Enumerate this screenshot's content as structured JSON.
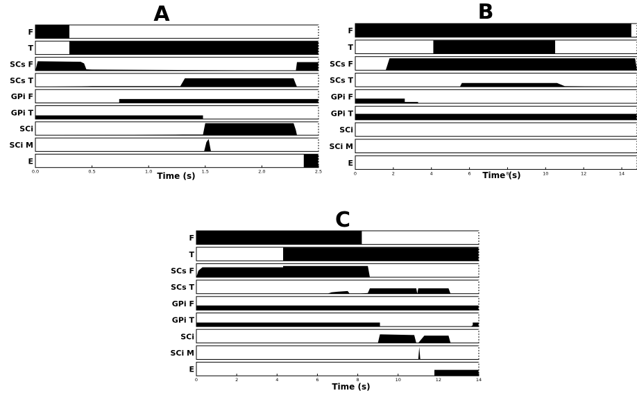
{
  "chart_data": [
    {
      "type": "area",
      "title": "A",
      "xlabel": "Time (s)",
      "xlim": [
        0,
        2.5
      ],
      "xticks": [
        "0.0",
        "0.5",
        "1.0",
        "1.5",
        "2.0",
        "2.5"
      ],
      "ylim": [
        0,
        1
      ],
      "grid": false,
      "series": [
        {
          "name": "F",
          "x": [
            0,
            0.3,
            0.3,
            2.5
          ],
          "values": [
            1,
            1,
            0,
            0
          ]
        },
        {
          "name": "T",
          "x": [
            0,
            0.3,
            0.3,
            2.5
          ],
          "values": [
            0,
            0,
            1,
            1
          ]
        },
        {
          "name": "SCs F",
          "x": [
            0,
            0.02,
            0.4,
            0.43,
            0.45,
            0.5,
            2.3,
            2.31,
            2.5
          ],
          "values": [
            0,
            0.72,
            0.68,
            0.55,
            0.1,
            0.08,
            0,
            0.65,
            0.65
          ]
        },
        {
          "name": "SCs T",
          "x": [
            0,
            0.5,
            1.28,
            1.32,
            2.28,
            2.3,
            2.31,
            2.5
          ],
          "values": [
            0,
            0.05,
            0.05,
            0.65,
            0.65,
            0.2,
            0,
            0
          ]
        },
        {
          "name": "GPi F",
          "x": [
            0,
            0.74,
            0.74,
            2.5
          ],
          "values": [
            0,
            0,
            0.3,
            0.3
          ]
        },
        {
          "name": "GPi T",
          "x": [
            0,
            1.48,
            1.48,
            2.5
          ],
          "values": [
            0.28,
            0.28,
            0,
            0
          ]
        },
        {
          "name": "SCi",
          "x": [
            0,
            1.3,
            1.48,
            1.5,
            2.28,
            2.3,
            2.31,
            2.5
          ],
          "values": [
            0,
            0.05,
            0.05,
            0.92,
            0.92,
            0.4,
            0,
            0
          ]
        },
        {
          "name": "SCi M",
          "x": [
            0,
            1.49,
            1.51,
            1.53,
            1.55,
            2.5
          ],
          "values": [
            0,
            0,
            0.7,
            0.95,
            0,
            0
          ]
        },
        {
          "name": "E",
          "x": [
            0,
            2.37,
            2.37,
            2.5
          ],
          "values": [
            0,
            0,
            1,
            1
          ]
        }
      ]
    },
    {
      "type": "area",
      "title": "B",
      "xlabel": "Time (s)",
      "xlim": [
        0,
        14.8
      ],
      "xticks": [
        "0",
        "2",
        "4",
        "6",
        "8",
        "10",
        "12",
        "14"
      ],
      "ylim": [
        0,
        1
      ],
      "grid": false,
      "series": [
        {
          "name": "F",
          "x": [
            0,
            14.5,
            14.5,
            14.8
          ],
          "values": [
            1,
            1,
            0,
            0
          ]
        },
        {
          "name": "T",
          "x": [
            0,
            4.1,
            4.1,
            10.5,
            10.5,
            14.8
          ],
          "values": [
            0,
            0,
            1,
            1,
            0,
            0
          ]
        },
        {
          "name": "SCs F",
          "x": [
            0,
            1.6,
            1.8,
            14.7,
            14.8
          ],
          "values": [
            0,
            0,
            0.9,
            0.9,
            0
          ]
        },
        {
          "name": "SCs T",
          "x": [
            0,
            5.5,
            5.6,
            10.6,
            11.0,
            14.8
          ],
          "values": [
            0,
            0,
            0.28,
            0.28,
            0.05,
            0
          ]
        },
        {
          "name": "GPi F",
          "x": [
            0,
            2.6,
            2.6,
            3.3,
            3.3,
            14.8
          ],
          "values": [
            0.35,
            0.35,
            0.1,
            0.1,
            0,
            0
          ]
        },
        {
          "name": "GPi T",
          "x": [
            0,
            14.8
          ],
          "values": [
            0.45,
            0.45
          ]
        },
        {
          "name": "SCi",
          "x": [
            0,
            14.8
          ],
          "values": [
            0,
            0
          ]
        },
        {
          "name": "SCi M",
          "x": [
            0,
            14.8
          ],
          "values": [
            0,
            0
          ]
        },
        {
          "name": "E",
          "x": [
            0,
            14.8
          ],
          "values": [
            0,
            0
          ]
        }
      ]
    },
    {
      "type": "area",
      "title": "C",
      "xlabel": "Time (s)",
      "xlim": [
        0,
        14
      ],
      "xticks": [
        "0",
        "2",
        "4",
        "6",
        "8",
        "10",
        "12",
        "14"
      ],
      "ylim": [
        0,
        1
      ],
      "grid": false,
      "series": [
        {
          "name": "F",
          "x": [
            0,
            8.2,
            8.2,
            14
          ],
          "values": [
            1,
            1,
            0,
            0
          ]
        },
        {
          "name": "T",
          "x": [
            0,
            4.3,
            4.3,
            14
          ],
          "values": [
            0,
            0,
            1,
            1
          ]
        },
        {
          "name": "SCs F",
          "x": [
            0,
            0.1,
            0.3,
            4.3,
            4.3,
            8.5,
            8.6,
            14
          ],
          "values": [
            0,
            0.5,
            0.75,
            0.75,
            0.85,
            0.85,
            0,
            0
          ]
        },
        {
          "name": "SCs T",
          "x": [
            0,
            6.5,
            6.7,
            7.0,
            7.5,
            7.6,
            8.0,
            8.5,
            8.6,
            9.0,
            10.9,
            10.95,
            11.0,
            12.5,
            12.6,
            14
          ],
          "values": [
            0,
            0,
            0.1,
            0.15,
            0.2,
            0,
            0,
            0.05,
            0.4,
            0.4,
            0.4,
            0,
            0.4,
            0.4,
            0,
            0
          ]
        },
        {
          "name": "GPi F",
          "x": [
            0,
            14
          ],
          "values": [
            0.35,
            0.35
          ]
        },
        {
          "name": "GPi T",
          "x": [
            0,
            9.1,
            9.1,
            13.6,
            13.7,
            13.7,
            14
          ],
          "values": [
            0.3,
            0.3,
            0,
            0,
            0.1,
            0.3,
            0.3
          ]
        },
        {
          "name": "SCi",
          "x": [
            0,
            9.0,
            9.1,
            10.8,
            10.9,
            11.0,
            11.3,
            12.5,
            12.6,
            14
          ],
          "values": [
            0,
            0,
            0.65,
            0.6,
            0,
            0,
            0.55,
            0.55,
            0,
            0
          ]
        },
        {
          "name": "SCi M",
          "x": [
            0,
            11.0,
            11.05,
            11.1,
            14
          ],
          "values": [
            0,
            0,
            0.95,
            0,
            0
          ]
        },
        {
          "name": "E",
          "x": [
            0,
            11.8,
            11.8,
            14
          ],
          "values": [
            0,
            0,
            0.45,
            0.45
          ]
        }
      ]
    }
  ]
}
